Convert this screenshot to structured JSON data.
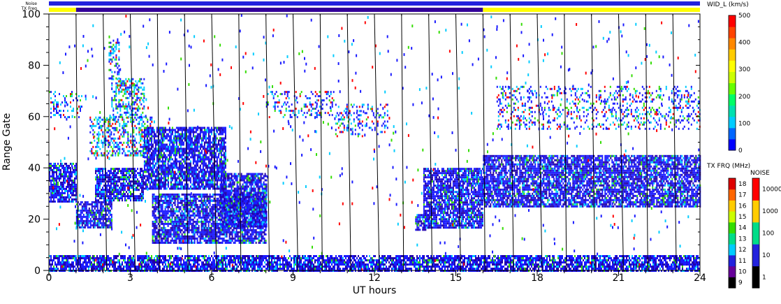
{
  "chart_data": {
    "type": "heatmap",
    "title": "",
    "xlabel": "UT hours",
    "ylabel": "Range Gate",
    "xlim": [
      0,
      24
    ],
    "ylim": [
      0,
      100
    ],
    "x_ticks": [
      0,
      3,
      6,
      9,
      12,
      15,
      18,
      21,
      24
    ],
    "y_ticks": [
      0,
      20,
      40,
      60,
      80,
      100
    ],
    "scan_boundaries_ut": [
      1,
      2,
      3,
      4,
      5,
      6,
      7,
      8,
      9,
      10,
      11,
      12,
      13,
      14,
      15,
      16,
      17,
      18,
      19,
      20,
      21,
      22,
      23
    ],
    "top_bars": [
      {
        "label": "Noise",
        "segments": [
          {
            "from": 0,
            "to": 24,
            "color": "#2222dd"
          }
        ]
      },
      {
        "label": "TX Freq",
        "segments": [
          {
            "from": 0,
            "to": 1,
            "color": "#ffff00"
          },
          {
            "from": 1,
            "to": 16,
            "color": "#330099"
          },
          {
            "from": 16,
            "to": 24,
            "color": "#ffff00"
          }
        ]
      }
    ],
    "echo_regions": [
      {
        "from_ut": 0.0,
        "to_ut": 1.0,
        "gate_lo": 27,
        "gate_hi": 42,
        "level": "w"
      },
      {
        "from_ut": 0.0,
        "to_ut": 1.2,
        "gate_lo": 60,
        "gate_hi": 70,
        "level": "s"
      },
      {
        "from_ut": 1.0,
        "to_ut": 2.3,
        "gate_lo": 17,
        "gate_hi": 27,
        "level": "w"
      },
      {
        "from_ut": 1.7,
        "to_ut": 3.5,
        "gate_lo": 27,
        "gate_hi": 40,
        "level": "w"
      },
      {
        "from_ut": 1.5,
        "to_ut": 3.8,
        "gate_lo": 45,
        "gate_hi": 60,
        "level": "m"
      },
      {
        "from_ut": 2.3,
        "to_ut": 3.5,
        "gate_lo": 60,
        "gate_hi": 75,
        "level": "m"
      },
      {
        "from_ut": 2.2,
        "to_ut": 2.6,
        "gate_lo": 75,
        "gate_hi": 90,
        "level": "m"
      },
      {
        "from_ut": 3.5,
        "to_ut": 6.5,
        "gate_lo": 32,
        "gate_hi": 56,
        "level": "w"
      },
      {
        "from_ut": 3.8,
        "to_ut": 8.0,
        "gate_lo": 11,
        "gate_hi": 30,
        "level": "w"
      },
      {
        "from_ut": 6.3,
        "to_ut": 8.0,
        "gate_lo": 17,
        "gate_hi": 38,
        "level": "w"
      },
      {
        "from_ut": 8.0,
        "to_ut": 10.5,
        "gate_lo": 60,
        "gate_hi": 70,
        "level": "s"
      },
      {
        "from_ut": 10.5,
        "to_ut": 12.5,
        "gate_lo": 52,
        "gate_hi": 65,
        "level": "s"
      },
      {
        "from_ut": 13.5,
        "to_ut": 14.0,
        "gate_lo": 16,
        "gate_hi": 22,
        "level": "w"
      },
      {
        "from_ut": 13.8,
        "to_ut": 16.0,
        "gate_lo": 17,
        "gate_hi": 40,
        "level": "w"
      },
      {
        "from_ut": 16.0,
        "to_ut": 24.0,
        "gate_lo": 25,
        "gate_hi": 45,
        "level": "w"
      },
      {
        "from_ut": 16.5,
        "to_ut": 24.0,
        "gate_lo": 55,
        "gate_hi": 72,
        "level": "s"
      },
      {
        "from_ut": 0.0,
        "to_ut": 24.0,
        "gate_lo": 0,
        "gate_hi": 6,
        "level": "w"
      }
    ],
    "colorbars": [
      {
        "title": "WID_L (km/s)",
        "ticks": [
          "0",
          "100",
          "200",
          "300",
          "400",
          "500"
        ],
        "colors": [
          "#0000ff",
          "#0066ff",
          "#00ccff",
          "#00e0b0",
          "#00ff66",
          "#66ff00",
          "#ccff00",
          "#ffff00",
          "#ffcc00",
          "#ff8800",
          "#ff4400",
          "#ff0000"
        ]
      },
      {
        "title": "TX FRQ (MHz)",
        "ticks": [
          "9",
          "10",
          "11",
          "12",
          "13",
          "14",
          "15",
          "16",
          "17",
          "18"
        ],
        "colors": [
          "#000000",
          "#660099",
          "#2222dd",
          "#00ccff",
          "#00dd88",
          "#33dd00",
          "#ccff00",
          "#ffcc00",
          "#ff6600",
          "#dd0000"
        ]
      },
      {
        "title": "NOISE",
        "ticks": [
          "1",
          "10",
          "100",
          "1000",
          "10000"
        ],
        "colors": [
          "#000000",
          "#2222dd",
          "#00dd88",
          "#ffcc00",
          "#ff0000"
        ]
      }
    ]
  },
  "colors": {
    "echo_main": "#1a1aff",
    "echo_dark": "#2200aa",
    "echo_cyan": "#00ccff",
    "echo_green": "#33dd00",
    "echo_red": "#ff0000"
  }
}
